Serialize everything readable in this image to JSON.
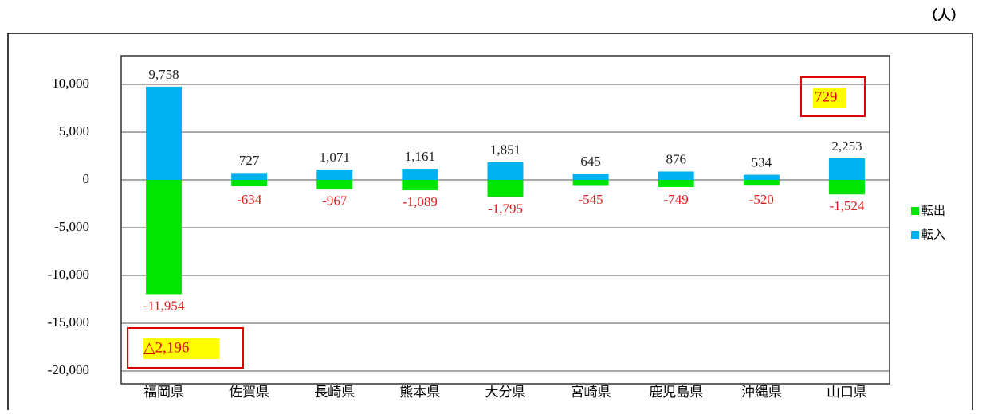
{
  "chart_data": {
    "type": "bar",
    "unit": "（人）",
    "categories": [
      "福岡県",
      "佐賀県",
      "長崎県",
      "熊本県",
      "大分県",
      "宮崎県",
      "鹿児島県",
      "沖縄県",
      "山口県"
    ],
    "series": [
      {
        "name": "転出",
        "color": "#00e600",
        "label_color": "#e02020",
        "values": [
          -11954,
          -634,
          -967,
          -1089,
          -1795,
          -545,
          -749,
          -520,
          -1524
        ],
        "value_labels": [
          "-11,954",
          "-634",
          "-967",
          "-1,089",
          "-1,795",
          "-545",
          "-749",
          "-520",
          "-1,524"
        ]
      },
      {
        "name": "転入",
        "color": "#00b0f0",
        "label_color": "#222222",
        "values": [
          9758,
          727,
          1071,
          1161,
          1851,
          645,
          876,
          534,
          2253
        ],
        "value_labels": [
          "9,758",
          "727",
          "1,071",
          "1,161",
          "1,851",
          "645",
          "876",
          "534",
          "2,253"
        ]
      }
    ],
    "ylim": [
      -20000,
      13000
    ],
    "yticks": [
      {
        "value": -20000,
        "label": "-20,000"
      },
      {
        "value": -15000,
        "label": "-15,000"
      },
      {
        "value": -10000,
        "label": "-10,000"
      },
      {
        "value": -5000,
        "label": "-5,000"
      },
      0,
      {
        "value": 5000,
        "label": "5,000"
      },
      {
        "value": 10000,
        "label": "10,000"
      }
    ],
    "grid": true,
    "legend": "right",
    "annotations": [
      {
        "text": "△2,196"
      },
      {
        "text": "729"
      }
    ]
  }
}
